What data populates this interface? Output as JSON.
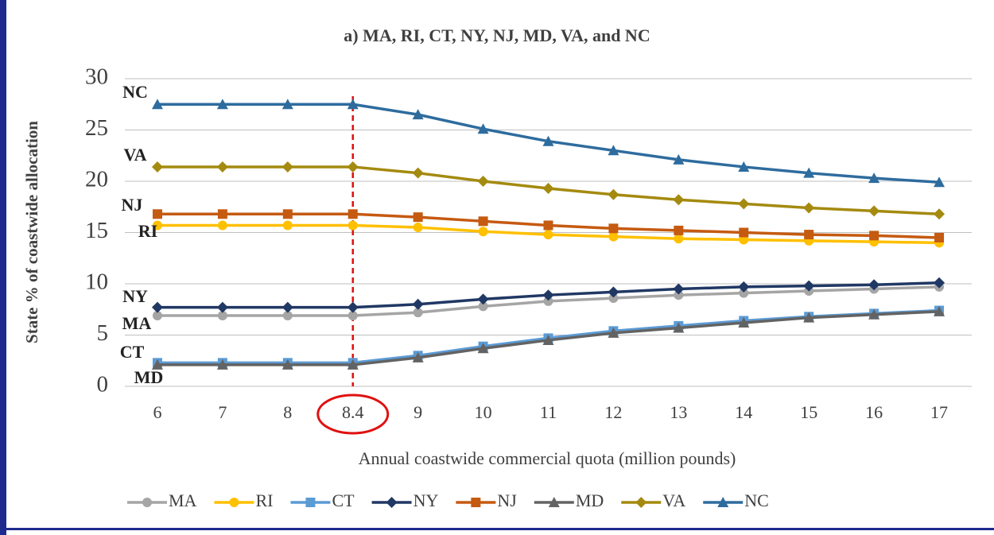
{
  "chart_data": {
    "type": "line",
    "title": "a) MA, RI, CT, NY, NJ, MD, VA, and NC",
    "x_label": "Annual coastwide commercial quota (million pounds)",
    "y_label": "State % of coastwide allocation",
    "categories": [
      6,
      7,
      8,
      8.4,
      9,
      10,
      11,
      12,
      13,
      14,
      15,
      16,
      17
    ],
    "highlight_category": 8.4,
    "ylim": [
      0,
      30
    ],
    "yticks": [
      0,
      5,
      10,
      15,
      20,
      25,
      30
    ],
    "grid": true,
    "series": [
      {
        "name": "MA",
        "color": "#a5a5a5",
        "marker": "circle",
        "values": [
          6.9,
          6.9,
          6.9,
          6.9,
          7.2,
          7.8,
          8.3,
          8.6,
          8.9,
          9.1,
          9.3,
          9.5,
          9.7
        ]
      },
      {
        "name": "RI",
        "color": "#ffc000",
        "marker": "circle",
        "values": [
          15.7,
          15.7,
          15.7,
          15.7,
          15.5,
          15.1,
          14.8,
          14.6,
          14.4,
          14.3,
          14.2,
          14.1,
          14.0
        ]
      },
      {
        "name": "CT",
        "color": "#5b9bd5",
        "marker": "square",
        "values": [
          2.3,
          2.3,
          2.3,
          2.3,
          3.0,
          3.9,
          4.7,
          5.4,
          5.9,
          6.4,
          6.8,
          7.1,
          7.4
        ]
      },
      {
        "name": "NY",
        "color": "#203864",
        "marker": "diamond",
        "values": [
          7.7,
          7.7,
          7.7,
          7.7,
          8.0,
          8.5,
          8.9,
          9.2,
          9.5,
          9.7,
          9.8,
          9.9,
          10.1
        ]
      },
      {
        "name": "NJ",
        "color": "#c55a11",
        "marker": "square",
        "values": [
          16.8,
          16.8,
          16.8,
          16.8,
          16.5,
          16.1,
          15.7,
          15.4,
          15.2,
          15.0,
          14.8,
          14.7,
          14.5
        ]
      },
      {
        "name": "MD",
        "color": "#636363",
        "marker": "triangle",
        "values": [
          2.1,
          2.1,
          2.1,
          2.1,
          2.8,
          3.7,
          4.5,
          5.2,
          5.7,
          6.2,
          6.7,
          7.0,
          7.3
        ]
      },
      {
        "name": "VA",
        "color": "#a48a0f",
        "marker": "diamond",
        "values": [
          21.4,
          21.4,
          21.4,
          21.4,
          20.8,
          20.0,
          19.3,
          18.7,
          18.2,
          17.8,
          17.4,
          17.1,
          16.8
        ]
      },
      {
        "name": "NC",
        "color": "#2e6c9e",
        "marker": "triangle",
        "values": [
          27.5,
          27.5,
          27.5,
          27.5,
          26.5,
          25.1,
          23.9,
          23.0,
          22.1,
          21.4,
          20.8,
          20.3,
          19.9
        ]
      }
    ],
    "annotations": [
      "NC",
      "VA",
      "NJ",
      "RI",
      "NY",
      "MA",
      "CT",
      "MD"
    ]
  }
}
